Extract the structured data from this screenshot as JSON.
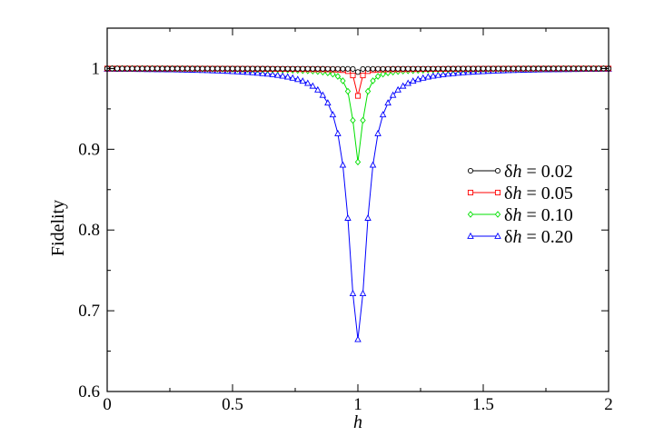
{
  "chart_data": {
    "type": "line",
    "title": "",
    "xlabel": "h",
    "ylabel": "Fidelity",
    "xlim": [
      0,
      2
    ],
    "ylim": [
      0.6,
      1.05
    ],
    "xticks": [
      "0",
      "0.5",
      "1",
      "1.5",
      "2"
    ],
    "yticks": [
      "0.6",
      "0.7",
      "0.8",
      "0.9",
      "1"
    ],
    "grid": false,
    "legend_position": "right-center",
    "h_step": 0.02,
    "series": [
      {
        "name": "δh = 0.02",
        "legend_prefix": "δ",
        "legend_var": "h",
        "legend_value": " = 0.02",
        "color": "#000000",
        "marker": "circle",
        "dh": 0.02,
        "min_value": 0.996
      },
      {
        "name": "δh = 0.05",
        "legend_prefix": "δ",
        "legend_var": "h",
        "legend_value": " = 0.05",
        "color": "#ff0000",
        "marker": "square",
        "dh": 0.05,
        "min_value": 0.967
      },
      {
        "name": "δh = 0.10",
        "legend_prefix": "δ",
        "legend_var": "h",
        "legend_value": " = 0.10",
        "color": "#00e000",
        "marker": "diamond",
        "dh": 0.1,
        "min_value": 0.886
      },
      {
        "name": "δh = 0.20",
        "legend_prefix": "δ",
        "legend_var": "h",
        "legend_value": " = 0.20",
        "color": "#0000ff",
        "marker": "triangle",
        "dh": 0.2,
        "min_value": 0.668
      }
    ]
  }
}
